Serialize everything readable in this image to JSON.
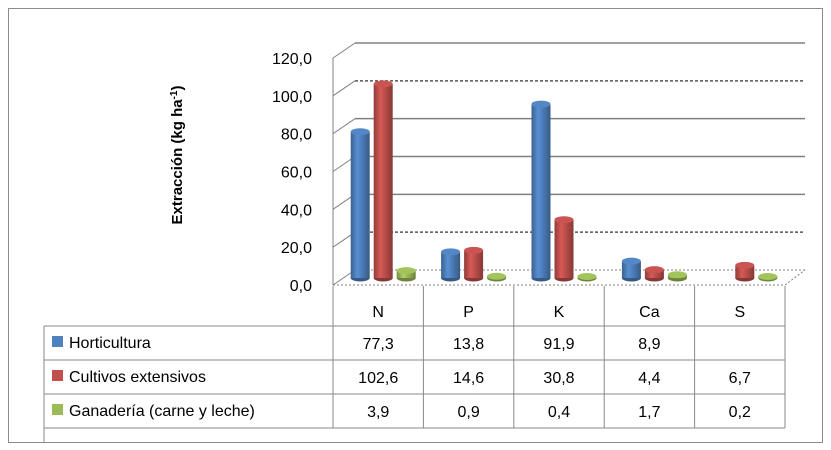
{
  "chart_data": {
    "type": "bar",
    "ylabel": "Extracción (kg ha",
    "ylabel_sup": "-1",
    "ylabel_close": ")",
    "ylim": [
      0,
      120
    ],
    "y_ticks": [
      "0,0",
      "20,0",
      "40,0",
      "60,0",
      "80,0",
      "100,0",
      "120,0"
    ],
    "categories": [
      "N",
      "P",
      "K",
      "Ca",
      "S"
    ],
    "legend": "data-table",
    "series": [
      {
        "name": "Horticultura",
        "color": "#4F81BD",
        "values": [
          77.3,
          13.8,
          91.9,
          8.9,
          null
        ],
        "labels": [
          "77,3",
          "13,8",
          "91,9",
          "8,9",
          ""
        ]
      },
      {
        "name": "Cultivos extensivos",
        "color": "#C0504D",
        "values": [
          102.6,
          14.6,
          30.8,
          4.4,
          6.7
        ],
        "labels": [
          "102,6",
          "14,6",
          "30,8",
          "4,4",
          "6,7"
        ]
      },
      {
        "name": "Ganadería (carne y leche)",
        "color": "#9BBB59",
        "values": [
          3.9,
          0.9,
          0.4,
          1.7,
          0.2
        ],
        "labels": [
          "3,9",
          "0,9",
          "0,4",
          "1,7",
          "0,2"
        ]
      }
    ]
  }
}
